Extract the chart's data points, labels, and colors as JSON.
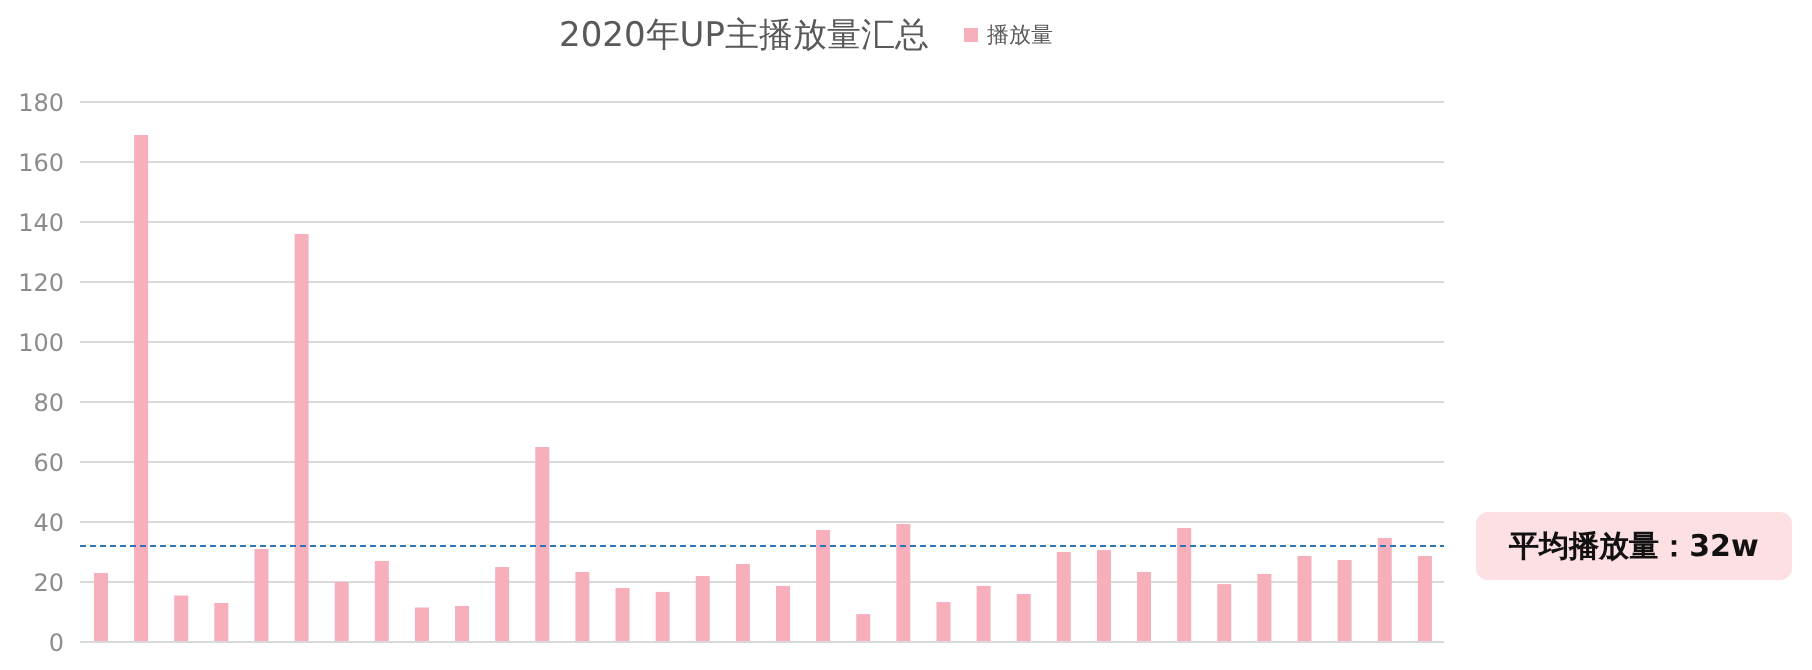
{
  "chart_data": {
    "type": "bar",
    "title": "2020年UP主播放量汇总",
    "categories": [
      null,
      null,
      null,
      null,
      null,
      null,
      null,
      null,
      null,
      null,
      null,
      null,
      null,
      null,
      null,
      null,
      null,
      null,
      null,
      null,
      null,
      null,
      null,
      null,
      null,
      null,
      null,
      null,
      null,
      null,
      null,
      null,
      null,
      null
    ],
    "series": [
      {
        "name": "播放量",
        "color": "#f7afbb",
        "values": [
          23,
          169,
          15.5,
          13,
          31,
          136,
          20,
          27,
          11.5,
          12,
          25,
          65,
          23.3,
          18,
          16.7,
          22,
          26,
          18.7,
          37.3,
          9.3,
          39.3,
          13.3,
          18.7,
          16,
          30,
          30.7,
          23.3,
          38,
          19.3,
          22.7,
          28.7,
          27.3,
          34.7,
          28.7
        ]
      }
    ],
    "ylim": [
      0,
      180
    ],
    "yticks": [
      0,
      20,
      40,
      60,
      80,
      100,
      120,
      140,
      160,
      180
    ],
    "grid": "y",
    "legend": "top",
    "ref_lines": [
      {
        "axis": "y",
        "value": 32,
        "label": "平均播放量：32w",
        "color": "#2e75b6",
        "line_style": "dashed"
      }
    ]
  }
}
